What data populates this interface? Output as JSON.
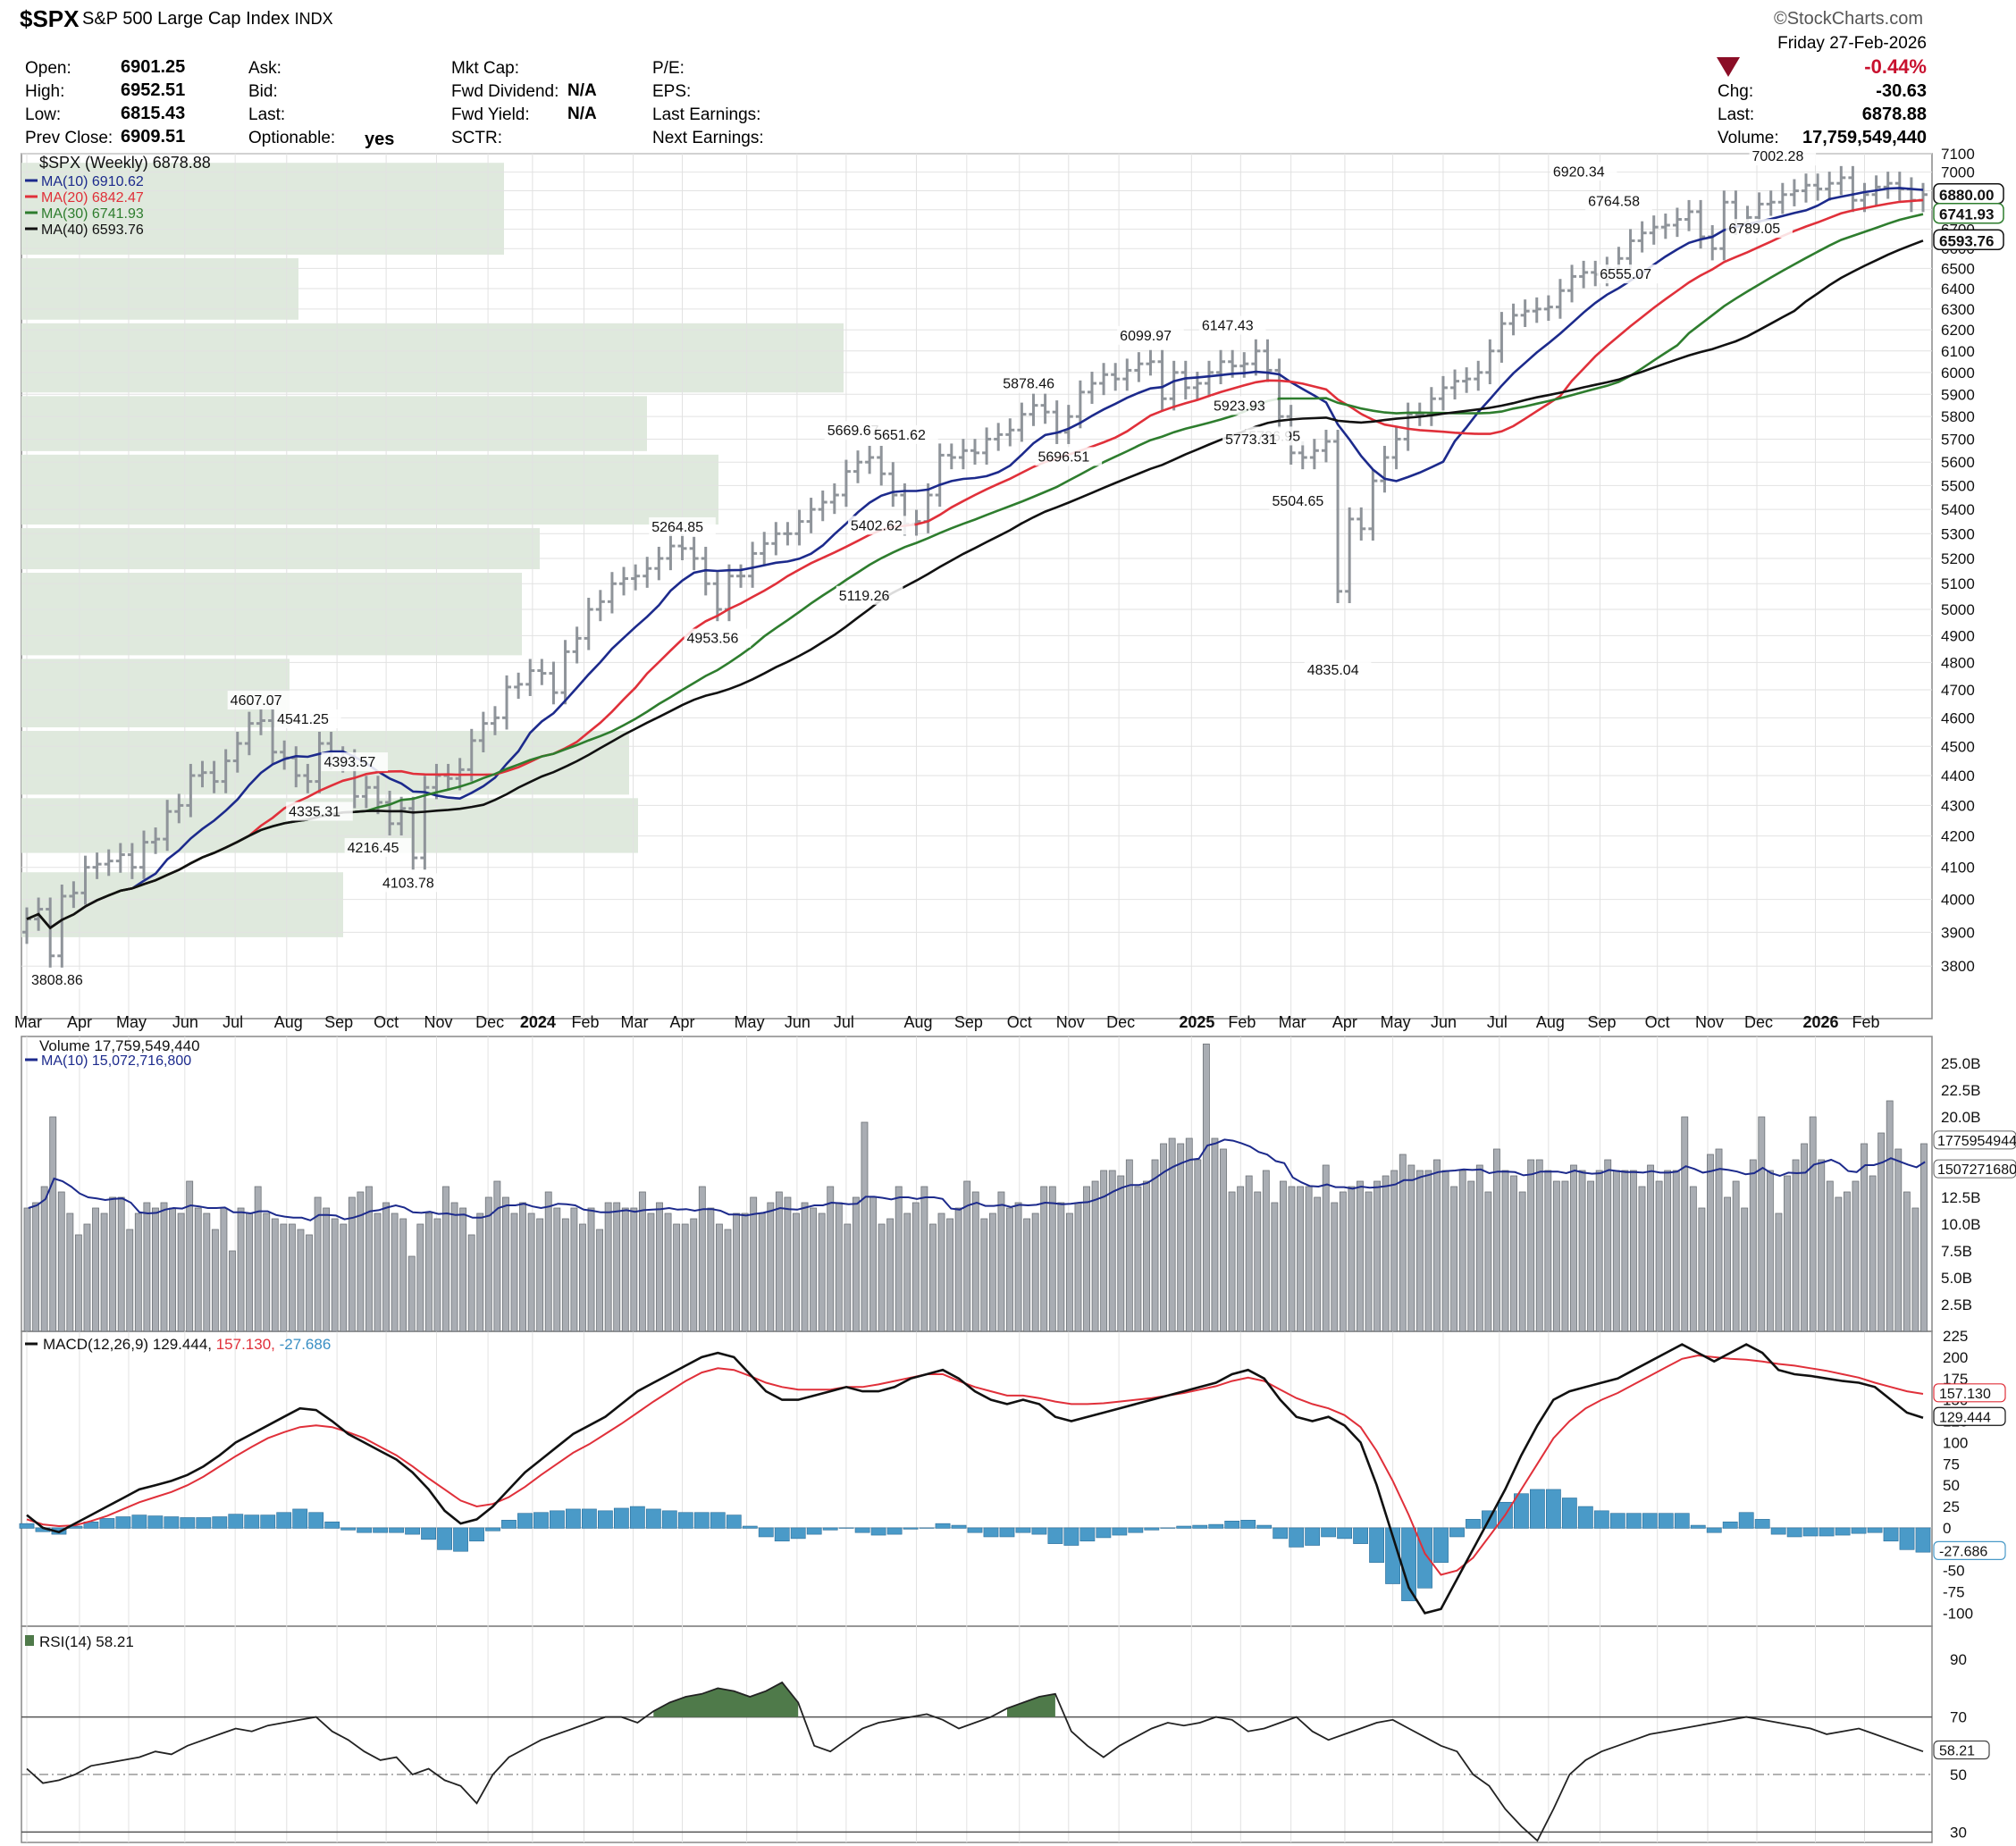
{
  "header": {
    "symbol": "$SPX",
    "name": "S&P 500 Large Cap Index",
    "exchange": "INDX",
    "brand": "©StockCharts.com",
    "date": "Friday  27-Feb-2026",
    "change_pct": "-0.44%",
    "chg_label": "Chg:",
    "chg_value": "-30.63",
    "last_label": "Last:",
    "last_value": "6878.88",
    "volume_label": "Volume:",
    "volume_value": "17,759,549,440",
    "open_label": "Open:",
    "open_value": "6901.25",
    "high_label": "High:",
    "high_value": "6952.51",
    "low_label": "Low:",
    "low_value": "6815.43",
    "prev_label": "Prev Close:",
    "prev_value": "6909.51",
    "ask_label": "Ask:",
    "bid_label": "Bid:",
    "last2_label": "Last:",
    "optionable_label": "Optionable:",
    "optionable_value": "yes",
    "mktcap_label": "Mkt Cap:",
    "fwddiv_label": "Fwd Dividend:",
    "fwddiv_value": "N/A",
    "fwdyield_label": "Fwd Yield:",
    "fwdyield_value": "N/A",
    "sctr_label": "SCTR:",
    "pe_label": "P/E:",
    "eps_label": "EPS:",
    "lastearn_label": "Last Earnings:",
    "nextearn_label": "Next Earnings:"
  },
  "colors": {
    "ma10": "#1c2a8c",
    "ma20": "#e0303a",
    "ma30": "#2e7d2e",
    "ma40": "#111111",
    "bar": "#a9adb3",
    "hist": "#4a9ac8",
    "rsi_fill": "#4f7a4a",
    "volume_profile": "#dfe9dd"
  },
  "chart_data": [
    {
      "type": "line",
      "title": "$SPX (Weekly) 6878.88",
      "legend": [
        "MA(10) 6910.62",
        "MA(20) 6842.47",
        "MA(30) 6741.93",
        "MA(40) 6593.76"
      ],
      "legend_placement": "top-left",
      "grid": true,
      "ylim": [
        3700,
        7100
      ],
      "ylog": true,
      "y_ticks": [
        3800,
        3900,
        4000,
        4100,
        4200,
        4300,
        4400,
        4500,
        4600,
        4700,
        4800,
        4900,
        5000,
        5100,
        5200,
        5300,
        5400,
        5500,
        5600,
        5700,
        5800,
        5900,
        6000,
        6100,
        6200,
        6300,
        6400,
        6500,
        6600,
        6700,
        6800,
        6900,
        7000,
        7100
      ],
      "x_labels": [
        "Mar",
        "Apr",
        "May",
        "Jun",
        "Jul",
        "Aug",
        "Sep",
        "Oct",
        "Nov",
        "Dec",
        "2024",
        "Feb",
        "Mar",
        "Apr",
        "May",
        "Jun",
        "Jul",
        "Aug",
        "Sep",
        "Oct",
        "Nov",
        "Dec",
        "2025",
        "Feb",
        "Mar",
        "Apr",
        "May",
        "Jun",
        "Jul",
        "Aug",
        "Sep",
        "Oct",
        "Nov",
        "Dec",
        "2026",
        "Feb"
      ],
      "bold_x_labels": [
        "2024",
        "2025",
        "2026"
      ],
      "x_label_weeks": [
        0,
        4.5,
        8.7,
        13.5,
        17.8,
        22.2,
        26.5,
        30.7,
        35,
        39.4,
        43.2,
        47.6,
        51.8,
        56,
        61.5,
        65.8,
        70,
        76,
        80.3,
        84.8,
        89,
        93.3,
        99.5,
        103.7,
        108,
        112.6,
        116.7,
        121,
        125.8,
        130,
        134.4,
        139.3,
        143.6,
        147.8,
        152.8,
        157
      ],
      "annotations": [
        "3808.86",
        "4607.07",
        "4541.25",
        "4393.57",
        "4335.31",
        "4216.45",
        "4103.78",
        "5264.85",
        "4953.56",
        "5669.67",
        "5651.62",
        "5402.62",
        "5119.26",
        "5878.46",
        "5696.51",
        "6099.97",
        "6147.43",
        "5923.93",
        "5786.95",
        "5773.31",
        "5504.65",
        "4835.04",
        "6920.34",
        "6764.58",
        "6555.07",
        "7002.28",
        "6789.05"
      ],
      "price_closes": [
        3940,
        3970,
        3830,
        4010,
        4020,
        4100,
        4110,
        4120,
        4140,
        4100,
        4180,
        4190,
        4280,
        4300,
        4400,
        4410,
        4380,
        4450,
        4510,
        4580,
        4590,
        4480,
        4460,
        4400,
        4380,
        4510,
        4460,
        4450,
        4330,
        4360,
        4310,
        4240,
        4290,
        4130,
        4360,
        4400,
        4390,
        4420,
        4520,
        4580,
        4600,
        4710,
        4720,
        4770,
        4760,
        4690,
        4840,
        4890,
        5000,
        5030,
        5100,
        5120,
        5130,
        5160,
        5200,
        5250,
        5240,
        5200,
        5100,
        5000,
        5130,
        5130,
        5220,
        5260,
        5300,
        5300,
        5350,
        5400,
        5430,
        5460,
        5560,
        5600,
        5620,
        5550,
        5460,
        5340,
        5350,
        5460,
        5630,
        5620,
        5650,
        5640,
        5700,
        5720,
        5740,
        5810,
        5850,
        5820,
        5730,
        5800,
        5910,
        5950,
        5990,
        5970,
        6010,
        6040,
        6050,
        5880,
        6000,
        5930,
        5950,
        6000,
        6050,
        6030,
        6040,
        6100,
        6010,
        5800,
        5640,
        5620,
        5650,
        5690,
        5070,
        5360,
        5320,
        5520,
        5620,
        5700,
        5810,
        5810,
        5880,
        5930,
        5960,
        5970,
        6000,
        6100,
        6230,
        6270,
        6290,
        6300,
        6310,
        6390,
        6460,
        6480,
        6470,
        6500,
        6550,
        6640,
        6680,
        6710,
        6720,
        6750,
        6790,
        6660,
        6600,
        6840,
        6730,
        6760,
        6830,
        6840,
        6880,
        6900,
        6930,
        6910,
        6940,
        6970,
        6850,
        6880,
        6920,
        6940,
        6910,
        6850,
        6880
      ]
    },
    {
      "type": "bar",
      "title": "Volume 17,759,549,440",
      "series": [
        {
          "name": "MA(10) 15,072,716,800",
          "values": []
        }
      ],
      "ylim": [
        0,
        27.5
      ],
      "y_tick_labels": [
        "2.5B",
        "5.0B",
        "7.5B",
        "10.0B",
        "12.5B",
        "15.0B",
        "17.5B",
        "20.0B",
        "22.5B",
        "25.0B"
      ],
      "values_b": [
        11.5,
        12,
        13.5,
        20,
        13,
        11,
        9,
        10,
        11.5,
        11,
        12.5,
        12.5,
        9.5,
        11,
        12,
        11.5,
        12,
        11.5,
        11,
        14,
        11.5,
        11,
        9.5,
        11.5,
        7.5,
        11.5,
        11,
        13.5,
        11,
        10.5,
        10,
        10,
        9.5,
        9,
        12.5,
        11.5,
        10.5,
        10,
        12.5,
        13,
        13.5,
        11,
        12,
        11,
        10.5,
        7,
        10,
        11,
        10.5,
        13.5,
        12,
        11.5,
        9,
        11,
        12.5,
        14,
        12.5,
        11,
        12,
        11,
        10.5,
        13,
        11.5,
        10.5,
        11.5,
        10,
        11.5,
        9.5,
        12,
        12,
        11.5,
        11.5,
        13,
        11,
        12,
        11,
        10,
        10,
        10.5,
        13.5,
        11.5,
        10,
        9.5,
        11,
        11,
        12.5,
        11,
        12,
        13,
        12.5,
        11,
        12,
        11.5,
        11,
        13.5,
        12,
        10,
        12.5,
        19.5,
        12.5,
        10,
        10.5,
        13.5,
        11,
        12,
        13.5,
        10,
        11,
        10.5,
        11.5,
        14,
        13,
        10.5,
        11,
        13,
        11.5,
        12,
        10.5,
        11,
        13.5,
        13.5,
        12,
        11,
        12,
        13.5,
        14,
        15,
        15,
        14.5,
        16,
        13.5,
        14,
        16,
        17.5,
        18,
        17.5,
        18,
        16,
        26.8,
        18,
        17,
        13,
        13.5,
        14.5,
        13,
        15,
        12,
        14,
        13.5,
        13.5,
        13.5,
        12.5,
        15.5,
        12,
        13,
        13.5,
        14,
        13,
        14,
        14.5,
        15,
        16.5,
        15.5,
        15,
        15,
        16,
        15,
        13.5,
        15,
        14,
        15.5,
        13,
        17,
        15,
        14.5,
        13,
        16,
        16,
        15,
        14,
        14,
        15.5,
        15,
        14,
        15,
        16,
        15,
        15,
        15,
        13.5,
        15.5,
        14,
        15,
        15,
        20,
        13.5,
        11.5,
        16.5,
        17,
        12.5,
        14,
        11.5,
        16,
        20,
        15,
        11,
        14.5,
        16,
        17.5,
        20,
        16,
        14,
        12.5,
        13,
        14,
        17.5,
        14.5,
        18.5,
        21.5,
        17,
        13,
        11.5,
        17.5
      ],
      "ma_value_label": "15072716800",
      "last_value_label": "17759549440"
    },
    {
      "type": "line",
      "title": "MACD(12,26,9) 129.444, 157.130, -27.686",
      "series_labels": [
        "129.444",
        "157.130",
        "-27.686"
      ],
      "ylim": [
        -110,
        225
      ],
      "y_ticks": [
        -100,
        -75,
        -50,
        -25,
        0,
        25,
        50,
        75,
        100,
        125,
        150,
        175,
        200,
        225
      ],
      "macd": [
        15,
        0,
        -5,
        5,
        15,
        25,
        35,
        45,
        50,
        55,
        62,
        72,
        85,
        100,
        110,
        120,
        130,
        140,
        138,
        125,
        110,
        100,
        90,
        80,
        65,
        45,
        20,
        5,
        10,
        25,
        45,
        65,
        80,
        95,
        110,
        120,
        130,
        145,
        160,
        170,
        180,
        190,
        200,
        205,
        200,
        180,
        160,
        150,
        150,
        155,
        160,
        165,
        160,
        160,
        165,
        175,
        180,
        185,
        175,
        160,
        150,
        145,
        150,
        145,
        130,
        125,
        130,
        135,
        140,
        145,
        150,
        155,
        160,
        165,
        170,
        180,
        185,
        175,
        150,
        130,
        125,
        130,
        120,
        100,
        50,
        -10,
        -70,
        -100,
        -95,
        -60,
        -25,
        10,
        45,
        85,
        120,
        150,
        160,
        165,
        170,
        175,
        185,
        195,
        205,
        215,
        205,
        195,
        205,
        215,
        205,
        185,
        180,
        178,
        175,
        172,
        170,
        165,
        150,
        135,
        129
      ],
      "signal": [
        10,
        4,
        2,
        3,
        8,
        14,
        22,
        30,
        36,
        42,
        50,
        60,
        72,
        84,
        95,
        105,
        112,
        118,
        120,
        118,
        112,
        105,
        95,
        85,
        72,
        58,
        45,
        32,
        25,
        28,
        36,
        48,
        62,
        75,
        88,
        98,
        110,
        122,
        135,
        148,
        160,
        172,
        182,
        187,
        185,
        178,
        170,
        165,
        162,
        162,
        162,
        165,
        165,
        168,
        172,
        176,
        180,
        180,
        172,
        165,
        160,
        155,
        155,
        152,
        148,
        145,
        145,
        146,
        148,
        150,
        152,
        155,
        158,
        162,
        166,
        172,
        176,
        172,
        162,
        152,
        145,
        140,
        132,
        118,
        90,
        55,
        15,
        -30,
        -55,
        -50,
        -35,
        -10,
        15,
        45,
        75,
        105,
        125,
        140,
        150,
        158,
        168,
        178,
        188,
        198,
        202,
        200,
        198,
        197,
        195,
        192,
        190,
        187,
        184,
        180,
        176,
        170,
        165,
        160,
        157
      ]
    },
    {
      "type": "line",
      "title": "RSI(14) 58.21",
      "ylim": [
        27,
        100
      ],
      "y_ticks": [
        30,
        50,
        70,
        90
      ],
      "last_value_label": "58.21",
      "values": [
        52,
        47,
        48,
        50,
        53,
        54,
        55,
        56,
        58,
        57,
        60,
        62,
        64,
        66,
        65,
        67,
        68,
        69,
        70,
        65,
        62,
        58,
        55,
        56,
        50,
        52,
        48,
        46,
        40,
        50,
        56,
        59,
        62,
        64,
        66,
        68,
        70,
        70,
        68,
        72,
        75,
        77,
        78,
        80,
        79,
        77,
        79,
        82,
        75,
        60,
        58,
        62,
        66,
        68,
        69,
        70,
        71,
        69,
        66,
        68,
        70,
        73,
        75,
        77,
        78,
        65,
        60,
        56,
        60,
        63,
        66,
        68,
        67,
        68,
        70,
        69,
        65,
        66,
        68,
        70,
        65,
        62,
        64,
        66,
        68,
        69,
        66,
        63,
        60,
        58,
        50,
        46,
        38,
        32,
        27,
        38,
        50,
        55,
        58,
        60,
        62,
        64,
        65,
        66,
        67,
        68,
        69,
        70,
        69,
        68,
        67,
        66,
        64,
        65,
        66,
        64,
        62,
        60,
        58
      ],
      "fill_above": 70
    }
  ]
}
